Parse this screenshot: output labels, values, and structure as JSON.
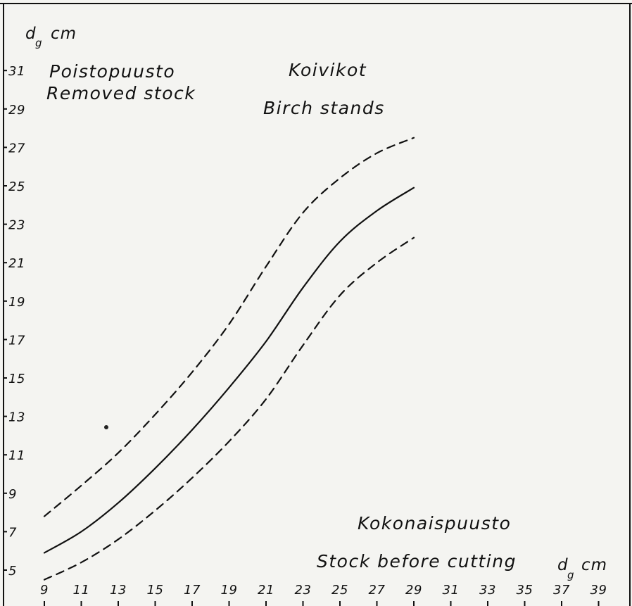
{
  "chart_data": {
    "type": "line",
    "title": "",
    "annotations": {
      "top_left_line1": "Poistopuusto",
      "top_left_line2": "Removed stock",
      "top_center_line1": "Koivikot",
      "top_center_line2": "Birch stands",
      "bottom_right_line1": "Kokonaispuusto",
      "bottom_right_line2": "Stock before cutting"
    },
    "ylabel": {
      "main": "d",
      "sub": "g",
      "unit": "cm"
    },
    "xlabel": {
      "main": "d",
      "sub": "g",
      "unit": "cm"
    },
    "x_ticks": [
      "9",
      "11",
      "13",
      "15",
      "17",
      "19",
      "21",
      "23",
      "25",
      "27",
      "29",
      "31",
      "33",
      "35",
      "37",
      "39"
    ],
    "y_ticks": [
      "5",
      "7",
      "9",
      "11",
      "13",
      "15",
      "17",
      "19",
      "21",
      "23",
      "25",
      "27",
      "29",
      "31"
    ],
    "xlim": [
      9,
      39
    ],
    "ylim": [
      5,
      31
    ],
    "grid": false,
    "series": [
      {
        "style": "solid",
        "x": [
          9,
          11,
          13,
          15,
          17,
          19,
          21,
          23,
          25,
          27,
          29
        ],
        "y": [
          5.9,
          7.0,
          8.5,
          10.3,
          12.3,
          14.5,
          16.9,
          19.7,
          22.1,
          23.7,
          24.9
        ]
      },
      {
        "style": "dashed",
        "x": [
          9,
          11,
          13,
          15,
          17,
          19,
          21,
          23,
          25,
          27,
          29
        ],
        "y": [
          7.8,
          9.4,
          11.1,
          13.1,
          15.3,
          17.8,
          20.8,
          23.6,
          25.4,
          26.7,
          27.5
        ]
      },
      {
        "style": "dashed",
        "x": [
          9,
          11,
          13,
          15,
          17,
          19,
          21,
          23,
          25,
          27,
          29
        ],
        "y": [
          4.5,
          5.4,
          6.6,
          8.1,
          9.8,
          11.7,
          13.9,
          16.7,
          19.3,
          21.0,
          22.3
        ]
      }
    ],
    "colors": {
      "line": "#111111",
      "background": "#f4f4f1"
    }
  }
}
